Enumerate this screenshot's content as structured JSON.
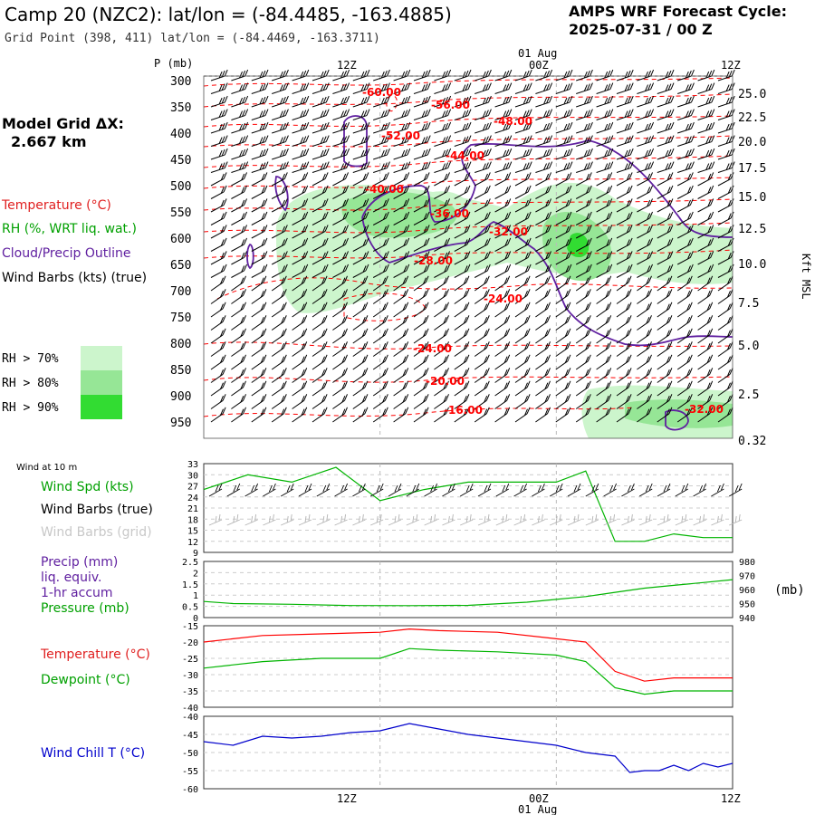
{
  "header": {
    "title": "Camp 20 (NZC2):  lat/lon = (-84.4485, -163.4885)",
    "subtitle": "Grid Point (398, 411) lat/lon = (-84.4469, -163.3711)",
    "cycle_label": "AMPS WRF Forecast Cycle:",
    "cycle_value": "2025-07-31 / 00  Z"
  },
  "time_axis": {
    "top_date": "01 Aug",
    "bottom_date": "01 Aug",
    "ticks": [
      "12Z",
      "00Z",
      "12Z"
    ]
  },
  "left_panel": {
    "grid_label": "Model Grid ΔX:",
    "grid_value": "2.667 km",
    "legend_temperature": "Temperature (°C)",
    "legend_rh": "RH (%, WRT liq. wat.)",
    "legend_cloud": "Cloud/Precip Outline",
    "legend_wind": "Wind Barbs (kts) (true)",
    "rh_levels": [
      "RH > 70%",
      "RH > 80%",
      "RH > 90%"
    ],
    "rh_colors": [
      "#ccf5cc",
      "#96e696",
      "#32dc32"
    ]
  },
  "colors": {
    "temperature": "#ff0000",
    "rh": "#00b400",
    "cloud": "#6020a0",
    "wind": "#000000",
    "grid_wind": "#b4b4b4",
    "wind_chill": "#0000cc",
    "grid_line": "#bbbbbb"
  },
  "chart_data": [
    {
      "type": "contour",
      "name": "cross_section",
      "ylabel": "P (mb)",
      "y2label": "Kft MSL",
      "yticks": [
        300,
        350,
        400,
        450,
        500,
        550,
        600,
        650,
        700,
        750,
        800,
        850,
        900,
        950
      ],
      "y2ticks": [
        "25.0",
        "22.5",
        "20.0",
        "17.5",
        "15.0",
        "12.5",
        "10.0",
        "7.5",
        "5.0",
        "2.5",
        "0.32"
      ],
      "temperature_labels": [
        "-60.00",
        "-56.00",
        "-52.00",
        "-48.00",
        "-44.00",
        "-40.00",
        "-36.00",
        "-32.00",
        "-28.00",
        "-24.00",
        "-24.00",
        "-20.00",
        "-16.00",
        "-32.00"
      ]
    },
    {
      "type": "line",
      "name": "wind_10m",
      "title": "Wind at 10 m",
      "series_label": "Wind Spd (kts)",
      "barb_label": "Wind Barbs (true)",
      "grid_barb_label": "Wind Barbs (grid)",
      "ylim": [
        9,
        33
      ],
      "yticks": [
        9,
        12,
        15,
        18,
        21,
        24,
        27,
        30,
        33
      ],
      "x_hours": [
        0,
        3,
        6,
        9,
        12,
        15,
        18,
        21,
        24,
        26,
        28,
        30,
        32,
        34,
        36
      ],
      "values": [
        26,
        30,
        28,
        32,
        23,
        26,
        28,
        28,
        28,
        31,
        12,
        12,
        14,
        13,
        13
      ]
    },
    {
      "type": "line",
      "name": "precip_pressure",
      "series_labels": [
        "Precip (mm)",
        "liq. equiv.",
        "1-hr accum",
        "Pressure (mb)"
      ],
      "ylim": [
        0,
        2.5
      ],
      "yticks": [
        "0",
        "0.5",
        "1",
        "1.5",
        "2",
        "2.5"
      ],
      "y2ticks": [
        940,
        950,
        960,
        970,
        980
      ],
      "y2label": "(mb)",
      "pressure_x_hours": [
        0,
        2,
        6,
        10,
        14,
        18,
        22,
        24,
        26,
        28,
        30,
        32,
        34,
        36
      ],
      "pressure_values": [
        951.5,
        950,
        949.5,
        948.6,
        948.5,
        948.7,
        951,
        953,
        955,
        958,
        961,
        963,
        965,
        967
      ]
    },
    {
      "type": "line",
      "name": "temp_dewpoint",
      "series": [
        {
          "name": "Temperature (°C)",
          "x_hours": [
            0,
            4,
            8,
            12,
            14,
            16,
            20,
            24,
            26,
            28,
            30,
            32,
            36
          ],
          "values": [
            -20,
            -18,
            -17.5,
            -17,
            -16,
            -16.5,
            -17,
            -19,
            -20,
            -29,
            -32,
            -31,
            -31
          ]
        },
        {
          "name": "Dewpoint (°C)",
          "x_hours": [
            0,
            4,
            8,
            12,
            14,
            16,
            20,
            24,
            26,
            28,
            30,
            32,
            36
          ],
          "values": [
            -28,
            -26,
            -25,
            -25,
            -22,
            -22.5,
            -23,
            -24,
            -26,
            -34,
            -36,
            -35,
            -35
          ]
        }
      ],
      "ylim": [
        -40,
        -15
      ],
      "yticks": [
        -15,
        -20,
        -25,
        -30,
        -35,
        -40
      ]
    },
    {
      "type": "line",
      "name": "wind_chill",
      "series_label": "Wind Chill T (°C)",
      "ylim": [
        -60,
        -40
      ],
      "yticks": [
        -40,
        -45,
        -50,
        -55,
        -60
      ],
      "x_hours": [
        0,
        2,
        4,
        6,
        8,
        10,
        12,
        14,
        16,
        18,
        20,
        22,
        24,
        26,
        28,
        29,
        30,
        31,
        32,
        33,
        34,
        35,
        36
      ],
      "values": [
        -47,
        -48,
        -45.5,
        -46,
        -45.5,
        -44.5,
        -44,
        -42,
        -43.5,
        -45,
        -46,
        -47,
        -48,
        -50,
        -51,
        -55.5,
        -55,
        -55,
        -53.5,
        -55,
        -53,
        -54,
        -53
      ]
    }
  ]
}
